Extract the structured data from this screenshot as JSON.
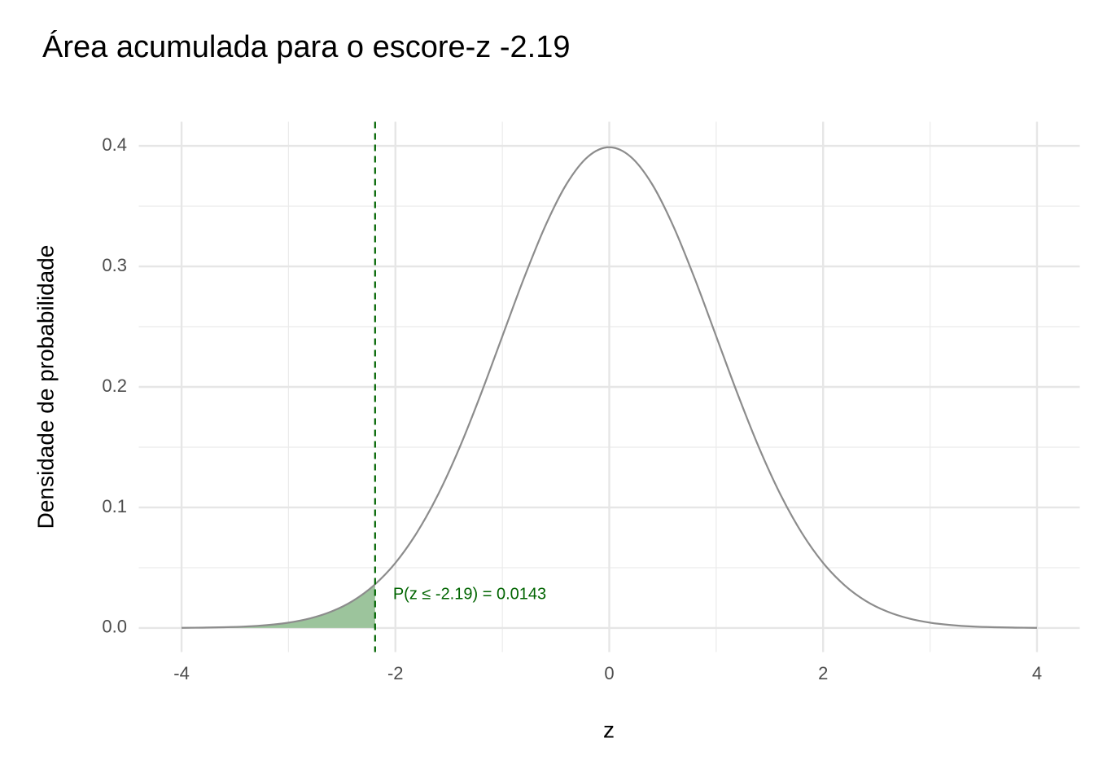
{
  "chart_data": {
    "type": "line",
    "title": "Área acumulada para o escore-z -2.19",
    "x_label": "z",
    "y_label": "Densidade de probabilidade",
    "curve": {
      "color": "#8c8c8c",
      "x": [
        -4,
        -3.8,
        -3.6,
        -3.4,
        -3.2,
        -3,
        -2.8,
        -2.6,
        -2.4,
        -2.2,
        -2,
        -1.8,
        -1.6,
        -1.4,
        -1.2,
        -1,
        -0.8,
        -0.6,
        -0.4,
        -0.2,
        0,
        0.2,
        0.4,
        0.6,
        0.8,
        1,
        1.2,
        1.4,
        1.6,
        1.8,
        2,
        2.2,
        2.4,
        2.6,
        2.8,
        3,
        3.2,
        3.4,
        3.6,
        3.8,
        4
      ],
      "values": [
        0.0001,
        0.0003,
        0.0006,
        0.0012,
        0.0024,
        0.0044,
        0.0079,
        0.0136,
        0.0224,
        0.0355,
        0.054,
        0.079,
        0.1109,
        0.1497,
        0.1942,
        0.242,
        0.2897,
        0.3332,
        0.3683,
        0.391,
        0.3989,
        0.391,
        0.3683,
        0.3332,
        0.2897,
        0.242,
        0.1942,
        0.1497,
        0.1109,
        0.079,
        0.054,
        0.0355,
        0.0224,
        0.0136,
        0.0079,
        0.0044,
        0.0024,
        0.0012,
        0.0006,
        0.0003,
        0.0001
      ]
    },
    "area": {
      "color": "#9cc49c",
      "x": [
        -4,
        -3.8,
        -3.6,
        -3.4,
        -3.2,
        -3,
        -2.8,
        -2.6,
        -2.4,
        -2.2,
        -2.19
      ],
      "values": [
        0.0001,
        0.0003,
        0.0006,
        0.0012,
        0.0024,
        0.0044,
        0.0079,
        0.0136,
        0.0224,
        0.0355,
        0.0363
      ]
    },
    "vline": {
      "x": -2.19,
      "color": "#006400"
    },
    "annotation": "P(z ≤ -2.19) = 0.0143",
    "xlim": [
      -4.4,
      4.4
    ],
    "ylim": [
      -0.02,
      0.42
    ],
    "xticks": [
      -4,
      -2,
      0,
      2,
      4
    ],
    "yticks": [
      {
        "value": 0,
        "label": "0.0"
      },
      0.1,
      0.2,
      0.3,
      0.4
    ],
    "x_minor_ticks": [
      -3,
      -1,
      1,
      3
    ],
    "y_minor_ticks": [
      0.05,
      0.15,
      0.25,
      0.35
    ],
    "grid": true
  }
}
